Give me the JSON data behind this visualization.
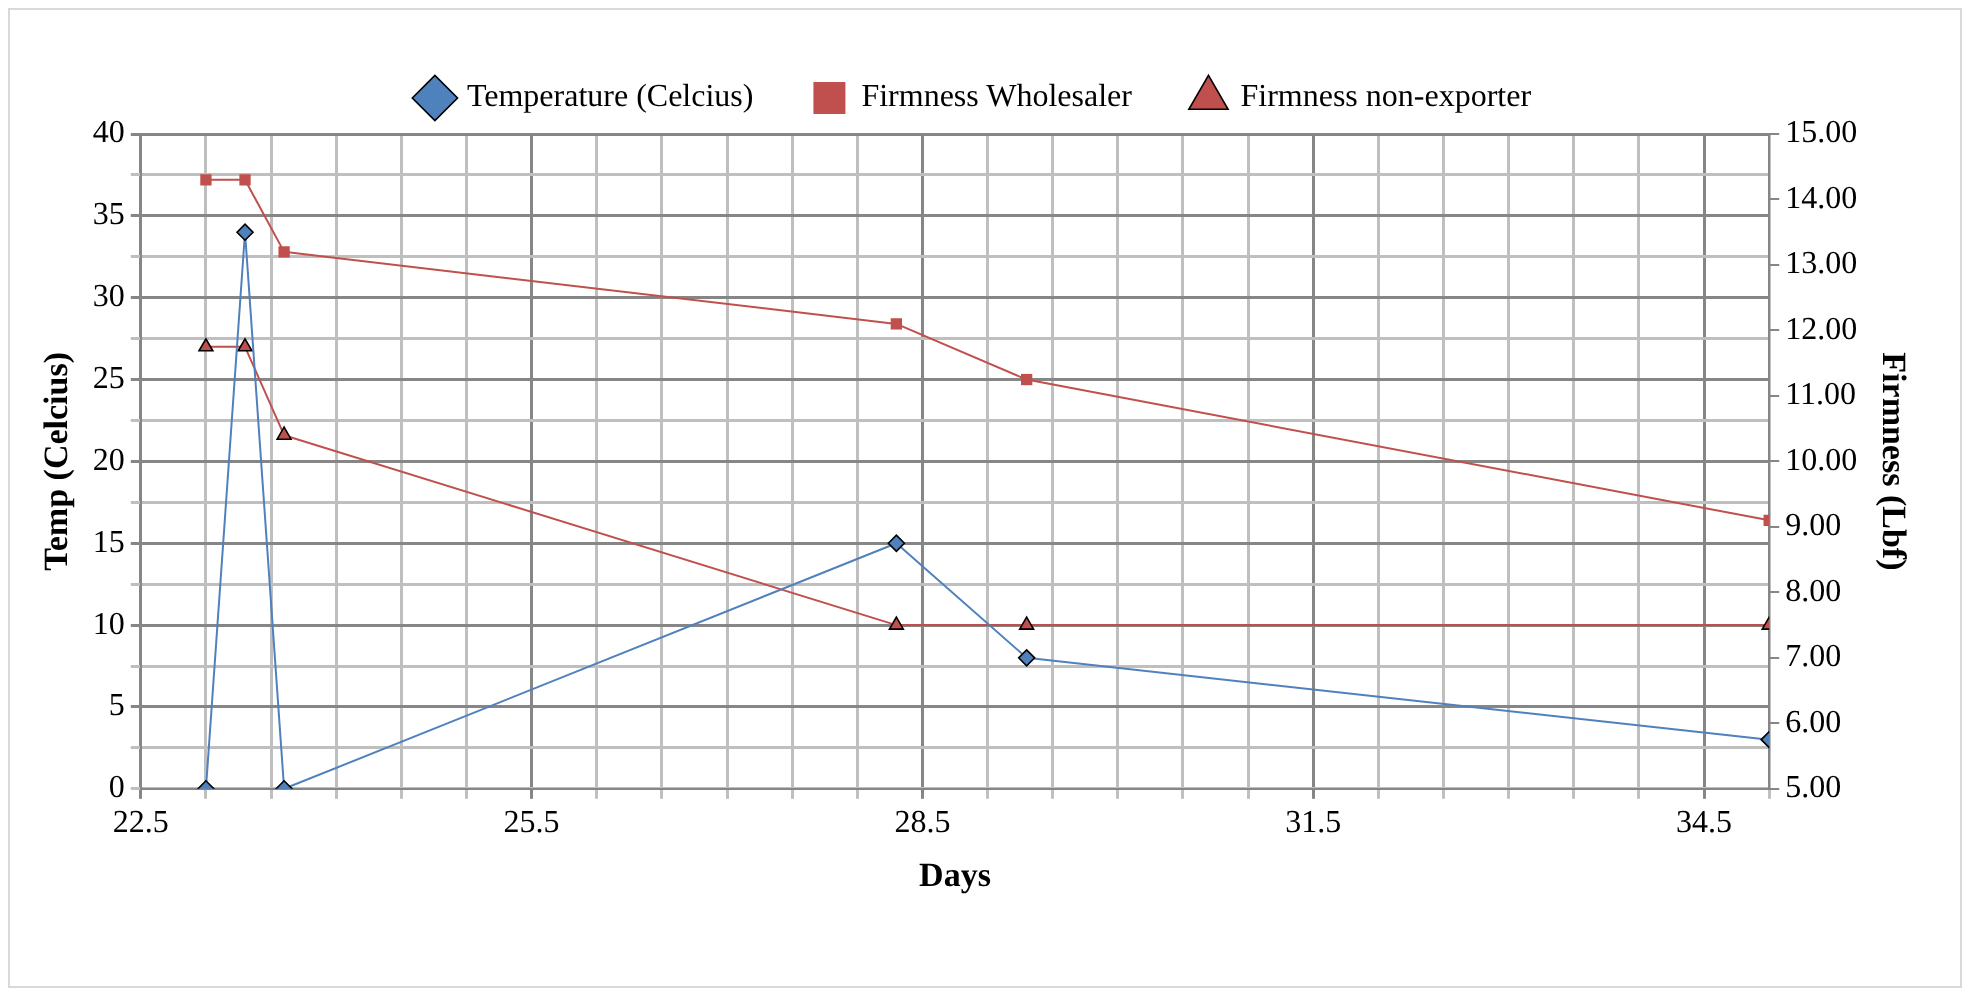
{
  "chart_data": {
    "type": "line",
    "xlabel": "Days",
    "ylabel": "Temp (Celcius)",
    "y2label": "Firmness (Lbf)",
    "xlim": [
      22.5,
      35
    ],
    "xticks": [
      22.5,
      {
        "value": 23,
        "label": null
      },
      {
        "value": 23.5,
        "label": null
      },
      {
        "value": 24,
        "label": null
      },
      {
        "value": 24.5,
        "label": null
      },
      {
        "value": 25,
        "label": null
      },
      25.5,
      {
        "value": 26,
        "label": null
      },
      {
        "value": 26.5,
        "label": null
      },
      {
        "value": 27,
        "label": null
      },
      {
        "value": 27.5,
        "label": null
      },
      {
        "value": 28,
        "label": null
      },
      28.5,
      {
        "value": 29,
        "label": null
      },
      {
        "value": 29.5,
        "label": null
      },
      {
        "value": 30,
        "label": null
      },
      {
        "value": 30.5,
        "label": null
      },
      {
        "value": 31,
        "label": null
      },
      31.5,
      {
        "value": 32,
        "label": null
      },
      {
        "value": 32.5,
        "label": null
      },
      {
        "value": 33,
        "label": null
      },
      {
        "value": 33.5,
        "label": null
      },
      {
        "value": 34,
        "label": null
      },
      34.5,
      {
        "value": 35,
        "label": null
      }
    ],
    "ylim": [
      0,
      40
    ],
    "yticks": [
      0,
      {
        "value": 2.5,
        "label": null
      },
      5,
      {
        "value": 7.5,
        "label": null
      },
      10,
      {
        "value": 12.5,
        "label": null
      },
      15,
      {
        "value": 17.5,
        "label": null
      },
      20,
      {
        "value": 22.5,
        "label": null
      },
      25,
      {
        "value": 27.5,
        "label": null
      },
      30,
      {
        "value": 32.5,
        "label": null
      },
      35,
      {
        "value": 37.5,
        "label": null
      },
      40
    ],
    "y2lim": [
      5,
      15
    ],
    "y2ticks": [
      {
        "value": 5,
        "label": "5.00"
      },
      {
        "value": 6,
        "label": "6.00"
      },
      {
        "value": 7,
        "label": "7.00"
      },
      {
        "value": 8,
        "label": "8.00"
      },
      {
        "value": 9,
        "label": "9.00"
      },
      {
        "value": 10,
        "label": "10.00"
      },
      {
        "value": 11,
        "label": "11.00"
      },
      {
        "value": 12,
        "label": "12.00"
      },
      {
        "value": 13,
        "label": "13.00"
      },
      {
        "value": 14,
        "label": "14.00"
      },
      {
        "value": 15,
        "label": "15.00"
      }
    ],
    "grid": true,
    "legend": "top",
    "x": [
      23.0,
      23.3,
      23.6,
      28.3,
      29.3,
      35.0
    ],
    "series": [
      {
        "name": "Temperature (Celcius)",
        "color": "#4f81bd",
        "marker": "diamond",
        "values": [
          0,
          34,
          0,
          15,
          8,
          3
        ]
      },
      {
        "name": "Firmness Wholesaler",
        "color": "#c0504d",
        "marker": "square",
        "axis": "y2",
        "values": [
          14.3,
          14.3,
          13.2,
          12.1,
          11.25,
          9.1
        ]
      },
      {
        "name": "Firmness non-exporter",
        "color": "#c0504d",
        "marker": "triangle",
        "axis": "y2",
        "values": [
          11.75,
          11.75,
          10.4,
          7.5,
          7.5,
          7.5
        ]
      }
    ]
  }
}
